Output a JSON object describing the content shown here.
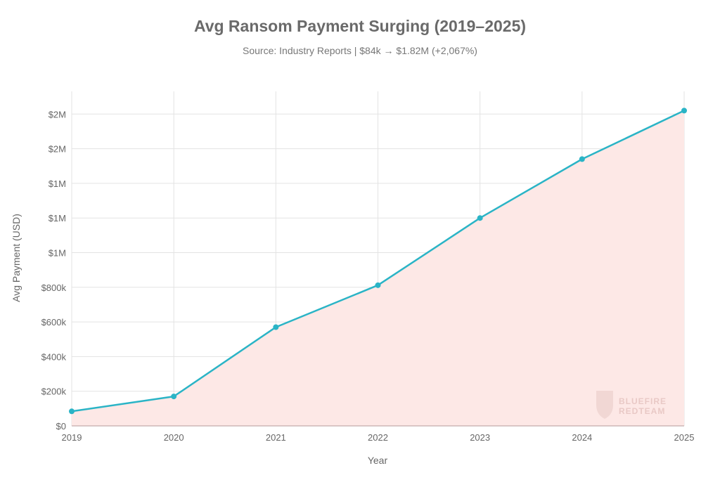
{
  "chart_data": {
    "type": "area",
    "title": "Avg Ransom Payment Surging (2019–2025)",
    "subtitle": "Source: Industry Reports | $84k → $1.82M (+2,067%)",
    "xlabel": "Year",
    "ylabel": "Avg Payment (USD)",
    "x": [
      "2019",
      "2020",
      "2021",
      "2022",
      "2023",
      "2024",
      "2025"
    ],
    "series": [
      {
        "values": [
          84000,
          170000,
          570000,
          812000,
          1200000,
          1540000,
          1820000
        ]
      }
    ],
    "ylim": [
      0,
      2000000
    ],
    "y_ticks": [
      {
        "value": 0,
        "label": "$0"
      },
      {
        "value": 200000,
        "label": "$200k"
      },
      {
        "value": 400000,
        "label": "$400k"
      },
      {
        "value": 600000,
        "label": "$600k"
      },
      {
        "value": 800000,
        "label": "$800k"
      },
      {
        "value": 1000000,
        "label": "$1M"
      },
      {
        "value": 1200000,
        "label": "$1M"
      },
      {
        "value": 1400000,
        "label": "$1M"
      },
      {
        "value": 1600000,
        "label": "$2M"
      },
      {
        "value": 1800000,
        "label": "$2M"
      }
    ],
    "grid": true,
    "line_color": "#2ab4c6",
    "fill_color": "#fde8e6",
    "watermark": "BLUEFIRE REDTEAM"
  }
}
